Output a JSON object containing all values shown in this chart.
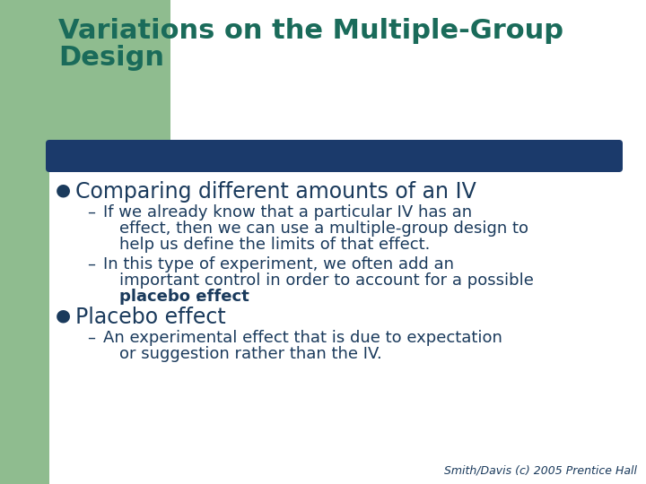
{
  "bg_color": "#ffffff",
  "green_rect_color": "#8fbc8f",
  "teal_bar_color": "#1b3a6b",
  "title_color": "#1a6b5a",
  "text_color": "#1a3a5c",
  "title_fontsize": 22,
  "bullet_fontsize": 17,
  "sub_fontsize": 13,
  "footer_fontsize": 9,
  "title_line1": "Variations on the Multiple-Group",
  "title_line2": "Design",
  "bullet1": "Comparing different amounts of an IV",
  "sub1a_line1": "If we already know that a particular IV has an",
  "sub1a_line2": "effect, then we can use a multiple-group design to",
  "sub1a_line3": "help us define the limits of that effect.",
  "sub1b_line1": "In this type of experiment, we often add an",
  "sub1b_line2": "important control in order to account for a possible",
  "sub1b_bold": "placebo effect",
  "sub1b_dot": ".",
  "bullet2": "Placebo effect",
  "sub2a_line1": "An experimental effect that is due to expectation",
  "sub2a_line2": "or suggestion rather than the IV.",
  "footer": "Smith/Davis (c) 2005 Prentice Hall"
}
